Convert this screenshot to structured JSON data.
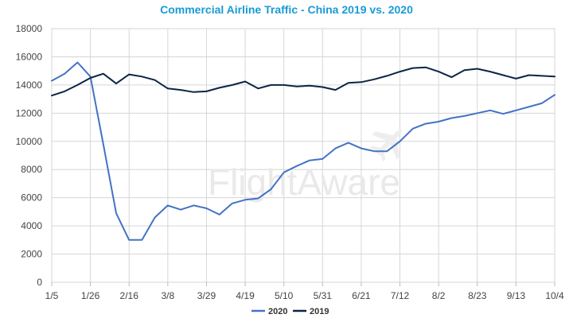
{
  "chart_data": {
    "type": "line",
    "title": "Commercial Airline Traffic - China 2019 vs. 2020",
    "watermark": "FlightAware",
    "xlabel": "",
    "ylabel": "",
    "ylim": [
      0,
      18000
    ],
    "yticks": [
      0,
      2000,
      4000,
      6000,
      8000,
      10000,
      12000,
      14000,
      16000,
      18000
    ],
    "grid": true,
    "legend": "bottom",
    "x_tick_labels": [
      "1/5",
      "1/26",
      "2/16",
      "3/8",
      "3/29",
      "4/19",
      "5/10",
      "5/31",
      "6/21",
      "7/12",
      "8/2",
      "8/23",
      "9/13",
      "10/4"
    ],
    "x_tick_indices": [
      0,
      3,
      6,
      9,
      12,
      15,
      18,
      21,
      24,
      27,
      30,
      33,
      36,
      39
    ],
    "series": [
      {
        "name": "2020",
        "color": "#4472c4",
        "values": [
          14300,
          14800,
          15600,
          14600,
          9800,
          4900,
          3000,
          3000,
          4600,
          5450,
          5150,
          5450,
          5250,
          4800,
          5600,
          5850,
          5950,
          6600,
          7800,
          8250,
          8650,
          8750,
          9500,
          9900,
          9500,
          9300,
          9300,
          10000,
          10900,
          11250,
          11400,
          11650,
          11800,
          12000,
          12200,
          11950,
          12200,
          12450,
          12700,
          13300
        ]
      },
      {
        "name": "2019",
        "color": "#0b2545",
        "values": [
          13250,
          13550,
          14000,
          14500,
          14800,
          14100,
          14750,
          14600,
          14350,
          13750,
          13650,
          13500,
          13550,
          13800,
          14000,
          14250,
          13750,
          14000,
          14000,
          13900,
          13950,
          13850,
          13650,
          14150,
          14200,
          14400,
          14650,
          14950,
          15200,
          15250,
          14950,
          14550,
          15050,
          15150,
          14950,
          14700,
          14450,
          14700,
          14650,
          14600
        ]
      }
    ]
  }
}
